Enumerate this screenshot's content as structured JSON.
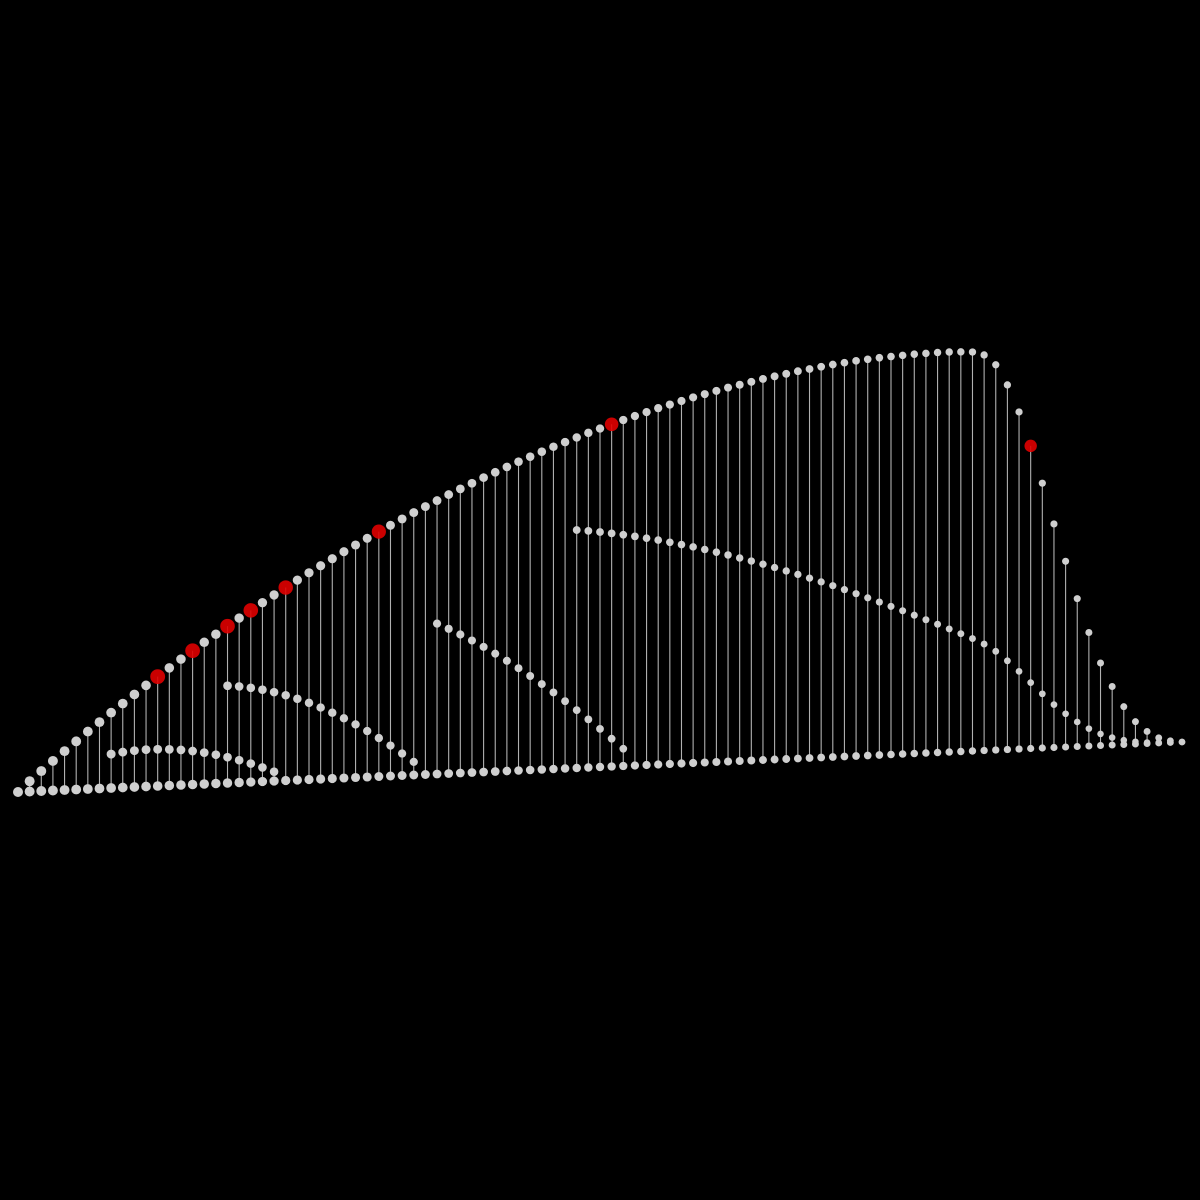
{
  "scene": {
    "background": "#000000",
    "node_color": "#cfcfcf",
    "highlight_color": "#e00000",
    "stem_color": "#d0d0d0"
  },
  "diagram": {
    "type": "3d-stem-plot",
    "columns": 101,
    "profile": [
      0.0,
      0.03,
      0.058,
      0.086,
      0.113,
      0.14,
      0.167,
      0.193,
      0.219,
      0.244,
      0.269,
      0.294,
      0.318,
      0.342,
      0.366,
      0.389,
      0.412,
      0.434,
      0.456,
      0.478,
      0.499,
      0.52,
      0.541,
      0.561,
      0.581,
      0.601,
      0.62,
      0.639,
      0.658,
      0.676,
      0.694,
      0.712,
      0.729,
      0.746,
      0.763,
      0.779,
      0.795,
      0.811,
      0.826,
      0.841,
      0.856,
      0.87,
      0.884,
      0.898,
      0.911,
      0.924,
      0.937,
      0.949,
      0.961,
      0.973,
      0.984,
      0.995,
      1.006,
      1.016,
      1.026,
      1.036,
      1.045,
      1.054,
      1.063,
      1.071,
      1.079,
      1.087,
      1.094,
      1.101,
      1.108,
      1.114,
      1.12,
      1.126,
      1.131,
      1.136,
      1.141,
      1.145,
      1.149,
      1.152,
      1.155,
      1.157,
      1.159,
      1.161,
      1.162,
      1.163,
      1.163,
      1.162,
      1.16,
      1.15,
      1.12,
      1.06,
      0.98,
      0.88,
      0.77,
      0.65,
      0.54,
      0.43,
      0.33,
      0.24,
      0.17,
      0.11,
      0.065,
      0.035,
      0.015,
      0.005,
      0.0
    ],
    "secondary_profiles": [
      {
        "from": 8,
        "to": 22,
        "ratio": 0.45
      },
      {
        "from": 18,
        "to": 34,
        "ratio": 0.62
      },
      {
        "from": 36,
        "to": 52,
        "ratio": 0.55
      },
      {
        "from": 48,
        "to": 100,
        "ratio": 0.72
      }
    ],
    "highlighted_columns": [
      12,
      15,
      18,
      20,
      23,
      31,
      51,
      87
    ]
  }
}
